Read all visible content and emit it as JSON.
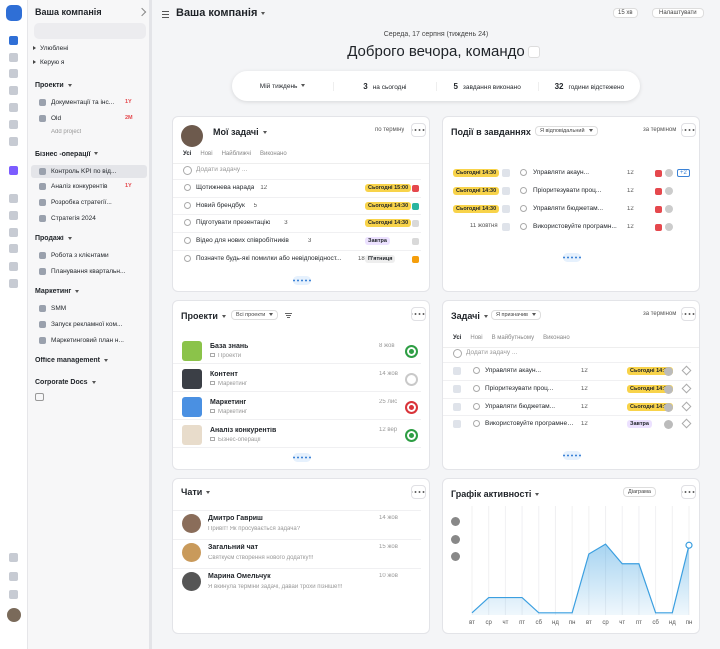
{
  "sidebar": {
    "workspace": "Ваша компанія",
    "favorites": "Улюблені",
    "managed": "Керую я",
    "groups": [
      {
        "title": "Проекти",
        "items": [
          {
            "label": "Документації та інс...",
            "badge": "1Y"
          },
          {
            "label": "Old",
            "badge": "2M"
          }
        ],
        "add": "Add project"
      },
      {
        "title": "Бізнес -операції",
        "items": [
          {
            "label": "Контроль KPI по від...",
            "selected": true
          },
          {
            "label": "Аналіз конкурентів",
            "badge": "1Y"
          },
          {
            "label": "Розробка стратегії..."
          },
          {
            "label": "Стратегія 2024"
          }
        ]
      },
      {
        "title": "Продажі",
        "items": [
          {
            "label": "Робота з клієнтами"
          },
          {
            "label": "Планування квартальн..."
          }
        ]
      },
      {
        "title": "Маркетинг",
        "items": [
          {
            "label": "SMM"
          },
          {
            "label": "Запуск рекламної ком..."
          },
          {
            "label": "Маркетинговий план н..."
          }
        ]
      },
      {
        "title": "Office management",
        "items": []
      },
      {
        "title": "Corporate Docs",
        "items": []
      }
    ]
  },
  "header": {
    "title": "Ваша компанія",
    "timer": "15 хв",
    "settings": "Налаштувати",
    "date": "Середа, 17 серпня (тиждень 24)",
    "greeting": "Доброго вечора, командо"
  },
  "stats": {
    "period": "Мій тиждень",
    "items": [
      {
        "value": 3,
        "label": "на сьогодні"
      },
      {
        "value": 5,
        "label": "завдання виконано"
      },
      {
        "value": 32,
        "label": "години відстежено"
      }
    ]
  },
  "my_tasks": {
    "title": "Мої задачі",
    "sort": "по терміну",
    "tabs": [
      "Усі",
      "Нові",
      "Найближчі",
      "Виконано"
    ],
    "add": "Додати задачу ...",
    "tasks": [
      {
        "title": "Щотижнева нарада",
        "count": 12,
        "due": "Сьогодні 15:00",
        "due_color": "#f8d34a",
        "flag_color": "#e5484d"
      },
      {
        "title": "Новий брендбук",
        "count": 5,
        "due": "Сьогодні 14:30",
        "due_color": "#f8d34a",
        "flag_color": "#2bb5a0"
      },
      {
        "title": "Підготувати презентацію",
        "count": 3,
        "due": "Сьогодні 14:30",
        "due_color": "#f8d34a",
        "flag_color": "#d9d9d9"
      },
      {
        "title": "Відео для нових співробітників",
        "count": 3,
        "due": "Завтра",
        "due_color": "#ece1ff",
        "flag_color": "#d9d9d9"
      },
      {
        "title": "Позначте будь-які помилки або невідповідност...",
        "count": 18,
        "due": "П'ятниця",
        "due_color": "#eeeeee",
        "flag_color": "#f59e0b"
      }
    ]
  },
  "events": {
    "title": "Події в завданнях",
    "filter": "Я відповідальний",
    "sort": "за терміном",
    "rows": [
      {
        "due": "Сьогодні 14:30",
        "due_color": "#f8d34a",
        "title": "Управляти акаун...",
        "count": 12,
        "extra": "+2"
      },
      {
        "due": "Сьогодні 14:30",
        "due_color": "#f8d34a",
        "title": "Пріоритезувати проц...",
        "count": 12
      },
      {
        "due": "Сьогодні 14:30",
        "due_color": "#f8d34a",
        "title": "Управляти бюджетам...",
        "count": 12
      },
      {
        "due": "11 жовтня",
        "title": "Використовуйте програмн...",
        "count": 12
      }
    ]
  },
  "projects": {
    "title": "Проекти",
    "filter": "Всі проекти",
    "items": [
      {
        "name": "База знань",
        "folder": "Проекти",
        "date": "8 жов",
        "color": "#8bc34a",
        "status_color": "#2e9e44"
      },
      {
        "name": "Контент",
        "folder": "Маркетинг",
        "date": "14 жов",
        "color": "#3b3f46",
        "status_color": "#c9c9c9"
      },
      {
        "name": "Маркетинг",
        "folder": "Маркетинг",
        "date": "25 лис",
        "color": "#4a90e2",
        "status_color": "#d9343a"
      },
      {
        "name": "Аналіз конкурентів",
        "folder": "Бізнес-операції",
        "date": "12 вер",
        "color": "#e8dccb",
        "status_color": "#2e9e44"
      }
    ]
  },
  "assigned": {
    "title": "Задачі",
    "filter": "Я призначив",
    "sort": "за терміном",
    "tabs": [
      "Усі",
      "Нові",
      "В майбутньому",
      "Виконано"
    ],
    "add": "Додати задачу ...",
    "tasks": [
      {
        "title": "Управляти акаун...",
        "count": 12,
        "due": "Сьогодні 14:30",
        "due_color": "#f8d34a"
      },
      {
        "title": "Пріоритезувати проц...",
        "count": 12,
        "due": "Сьогодні 14:30",
        "due_color": "#f8d34a"
      },
      {
        "title": "Управляти бюджетам...",
        "count": 12,
        "due": "Сьогодні 14:30",
        "due_color": "#f8d34a"
      },
      {
        "title": "Використовуйте програмне з...",
        "count": 12,
        "due": "Завтра",
        "due_color": "#ece1ff"
      }
    ]
  },
  "chats": {
    "title": "Чати",
    "items": [
      {
        "name": "Дмитро Гавриш",
        "message": "Привіт! Як просувається задача?",
        "date": "14 жов",
        "color": "#8a6d5a"
      },
      {
        "name": "Загальний чат",
        "message": "Святкуєм створення нового додатку!!!",
        "date": "15 жов",
        "color": "#c99a5b"
      },
      {
        "name": "Марина Омельчук",
        "message": "Я вкинула терміни задачі, давай трохи пізніше!!!",
        "date": "10 жов",
        "color": "#555555"
      }
    ]
  },
  "activity_widget": {
    "view_button": "Діаграма"
  },
  "chart_data": {
    "type": "area",
    "title": "Графік активності",
    "categories": [
      "вт",
      "ср",
      "чт",
      "пт",
      "сб",
      "нд",
      "пн",
      "вт",
      "ср",
      "чт",
      "пт",
      "сб",
      "нд",
      "пн"
    ],
    "values": [
      2,
      16,
      16,
      16,
      2,
      2,
      2,
      56,
      65,
      47,
      47,
      2,
      2,
      64
    ],
    "ylim": [
      0,
      100
    ],
    "color": "#3b9fe0",
    "grid": true
  }
}
